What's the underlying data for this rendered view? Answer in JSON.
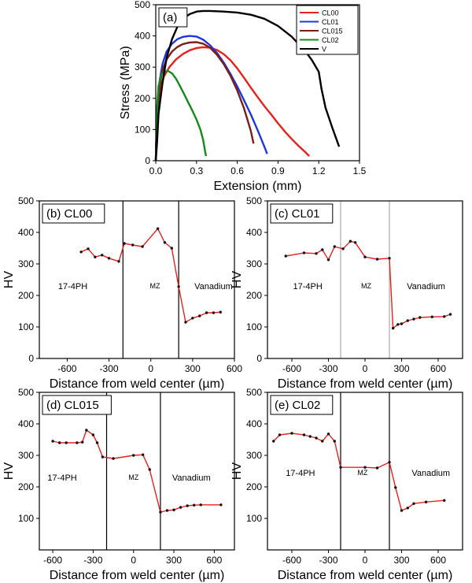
{
  "chart_data": [
    {
      "id": "a",
      "type": "line",
      "panel_label": "(a)",
      "xlabel": "Extension (mm)",
      "ylabel": "Stress (MPa)",
      "xlim": [
        0,
        1.5
      ],
      "ylim": [
        0,
        500
      ],
      "xticks": [
        0.0,
        0.3,
        0.6,
        0.9,
        1.2,
        1.5
      ],
      "xtick_labels": [
        "0.0",
        "0.3",
        "0.6",
        "0.9",
        "1.2",
        "1.5"
      ],
      "yticks": [
        0,
        100,
        200,
        300,
        400,
        500
      ],
      "ytick_labels": [
        "0",
        "100",
        "200",
        "300",
        "400",
        "500"
      ],
      "legend_position": "top-right",
      "series": [
        {
          "name": "CL00",
          "color": "#e8211c",
          "x": [
            0,
            0.01,
            0.03,
            0.06,
            0.1,
            0.15,
            0.2,
            0.25,
            0.3,
            0.35,
            0.4,
            0.45,
            0.5,
            0.55,
            0.6,
            0.65,
            0.7,
            0.75,
            0.8,
            0.85,
            0.9,
            0.95,
            1.0,
            1.05,
            1.1,
            1.13
          ],
          "y": [
            0,
            150,
            230,
            270,
            300,
            325,
            342,
            354,
            361,
            364,
            362,
            355,
            342,
            322,
            296,
            266,
            234,
            204,
            175,
            148,
            120,
            94,
            70,
            48,
            28,
            15
          ]
        },
        {
          "name": "CL01",
          "color": "#1f35e0",
          "x": [
            0,
            0.01,
            0.03,
            0.05,
            0.08,
            0.12,
            0.16,
            0.2,
            0.25,
            0.3,
            0.35,
            0.4,
            0.45,
            0.5,
            0.55,
            0.6,
            0.65,
            0.7,
            0.75,
            0.8,
            0.82
          ],
          "y": [
            0,
            170,
            260,
            310,
            350,
            375,
            390,
            397,
            400,
            398,
            388,
            370,
            346,
            315,
            278,
            238,
            194,
            148,
            98,
            45,
            22
          ]
        },
        {
          "name": "CL015",
          "color": "#7a1f16",
          "x": [
            0,
            0.01,
            0.03,
            0.05,
            0.08,
            0.12,
            0.16,
            0.2,
            0.25,
            0.3,
            0.35,
            0.4,
            0.45,
            0.5,
            0.55,
            0.6,
            0.65,
            0.7,
            0.72
          ],
          "y": [
            0,
            160,
            245,
            290,
            325,
            350,
            365,
            374,
            379,
            380,
            375,
            362,
            340,
            310,
            272,
            225,
            168,
            95,
            55
          ]
        },
        {
          "name": "CL02",
          "color": "#158a1c",
          "x": [
            0,
            0.01,
            0.02,
            0.04,
            0.06,
            0.09,
            0.12,
            0.15,
            0.18,
            0.21,
            0.24,
            0.27,
            0.3,
            0.33,
            0.35,
            0.36,
            0.37
          ],
          "y": [
            0,
            170,
            240,
            275,
            285,
            288,
            280,
            262,
            238,
            212,
            186,
            160,
            132,
            98,
            65,
            38,
            15
          ]
        },
        {
          "name": "V",
          "color": "#000000",
          "x": [
            0,
            0.01,
            0.02,
            0.05,
            0.08,
            0.12,
            0.16,
            0.2,
            0.25,
            0.3,
            0.35,
            0.4,
            0.5,
            0.6,
            0.7,
            0.8,
            0.9,
            1.0,
            1.1,
            1.15,
            1.2,
            1.22,
            1.25,
            1.3,
            1.35
          ],
          "y": [
            0,
            60,
            150,
            250,
            330,
            390,
            430,
            455,
            470,
            478,
            480,
            480,
            478,
            475,
            468,
            455,
            432,
            398,
            352,
            322,
            285,
            230,
            170,
            105,
            45
          ]
        }
      ]
    },
    {
      "id": "b",
      "type": "line",
      "panel_label": "(b) CL00",
      "xlabel": "Distance from weld center (µm)",
      "ylabel": "HV",
      "xlim": [
        -800,
        600
      ],
      "ylim": [
        0,
        500
      ],
      "xticks": [
        -600,
        -300,
        0,
        300,
        600
      ],
      "xtick_labels": [
        "-600",
        "-300",
        "0",
        "300",
        "600"
      ],
      "yticks": [
        0,
        100,
        200,
        300,
        400,
        500
      ],
      "ytick_labels": [
        "0",
        "100",
        "200",
        "300",
        "400",
        "500"
      ],
      "boundaries": [
        -200,
        200
      ],
      "boundary_color": "#000000",
      "region_labels": {
        "left": "17-4PH",
        "mid": "MZ",
        "right": "Vanadium"
      },
      "series": [
        {
          "name": "",
          "color": "#e8211c",
          "x": [
            -500,
            -450,
            -400,
            -350,
            -300,
            -230,
            -190,
            -130,
            -60,
            50,
            100,
            150,
            200,
            250,
            300,
            350,
            400,
            450,
            500
          ],
          "y": [
            338,
            348,
            322,
            328,
            318,
            308,
            365,
            360,
            355,
            412,
            368,
            350,
            228,
            115,
            128,
            135,
            145,
            145,
            147
          ]
        }
      ]
    },
    {
      "id": "c",
      "type": "line",
      "panel_label": "(c) CL01",
      "xlabel": "Distance from weld center (µm)",
      "ylabel": "HV",
      "xlim": [
        -800,
        800
      ],
      "ylim": [
        0,
        500
      ],
      "xticks": [
        -600,
        -300,
        0,
        300,
        600
      ],
      "xtick_labels": [
        "-600",
        "-300",
        "0",
        "300",
        "600"
      ],
      "yticks": [
        0,
        100,
        200,
        300,
        400,
        500
      ],
      "ytick_labels": [
        "0",
        "100",
        "200",
        "300",
        "400",
        "500"
      ],
      "boundaries": [
        -200,
        200
      ],
      "boundary_color": "#aaaaaa",
      "region_labels": {
        "left": "17-4PH",
        "mid": "MZ",
        "right": "Vanadium"
      },
      "series": [
        {
          "name": "",
          "color": "#e8211c",
          "x": [
            -650,
            -500,
            -400,
            -350,
            -300,
            -250,
            -180,
            -120,
            -80,
            0,
            100,
            200,
            230,
            270,
            300,
            350,
            400,
            450,
            550,
            650,
            700
          ],
          "y": [
            325,
            335,
            333,
            345,
            313,
            355,
            348,
            372,
            368,
            322,
            315,
            318,
            96,
            108,
            110,
            120,
            125,
            130,
            132,
            133,
            140
          ]
        }
      ]
    },
    {
      "id": "d",
      "type": "line",
      "panel_label": "(d) CL015",
      "xlabel": "Distance from weld center (µm)",
      "ylabel": "HV",
      "xlim": [
        -700,
        750
      ],
      "ylim": [
        0,
        500
      ],
      "xticks": [
        -600,
        -300,
        0,
        300,
        600
      ],
      "xtick_labels": [
        "-600",
        "-300",
        "0",
        "300",
        "600"
      ],
      "yticks": [
        100,
        200,
        300,
        400,
        500
      ],
      "ytick_labels": [
        "100",
        "200",
        "300",
        "400",
        "500"
      ],
      "boundaries": [
        -200,
        200
      ],
      "boundary_color": "#000000",
      "region_labels": {
        "left": "17-4PH",
        "mid": "MZ",
        "right": "Vanadium"
      },
      "series": [
        {
          "name": "",
          "color": "#e8211c",
          "x": [
            -600,
            -550,
            -500,
            -420,
            -380,
            -350,
            -300,
            -270,
            -230,
            -150,
            0,
            70,
            120,
            200,
            250,
            300,
            350,
            400,
            450,
            500,
            650
          ],
          "y": [
            345,
            340,
            340,
            340,
            342,
            380,
            365,
            340,
            295,
            290,
            300,
            302,
            255,
            120,
            125,
            127,
            135,
            140,
            142,
            143,
            143
          ]
        }
      ]
    },
    {
      "id": "e",
      "type": "line",
      "panel_label": "(e) CL02",
      "xlabel": "Distance from weld center (µm)",
      "ylabel": "HV",
      "xlim": [
        -800,
        800
      ],
      "ylim": [
        0,
        500
      ],
      "xticks": [
        -600,
        -300,
        0,
        300,
        600
      ],
      "xtick_labels": [
        "-600",
        "-300",
        "0",
        "300",
        "600"
      ],
      "yticks": [
        100,
        200,
        300,
        400,
        500
      ],
      "ytick_labels": [
        "100",
        "200",
        "300",
        "400",
        "500"
      ],
      "boundaries": [
        -200,
        200
      ],
      "boundary_color": "#000000",
      "region_labels": {
        "left": "17-4PH",
        "mid": "MZ",
        "right": "Vanadium"
      },
      "series": [
        {
          "name": "",
          "color": "#e8211c",
          "x": [
            -750,
            -700,
            -600,
            -500,
            -450,
            -400,
            -350,
            -300,
            -250,
            -200,
            0,
            100,
            200,
            250,
            300,
            350,
            400,
            500,
            650
          ],
          "y": [
            345,
            365,
            370,
            365,
            360,
            355,
            345,
            368,
            345,
            262,
            262,
            260,
            278,
            198,
            125,
            133,
            147,
            152,
            157
          ]
        }
      ]
    }
  ]
}
